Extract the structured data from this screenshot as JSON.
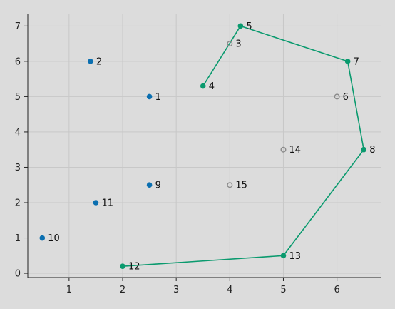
{
  "chart_data": {
    "type": "scatter",
    "title": "",
    "xlabel": "",
    "ylabel": "",
    "xlim": [
      0.23,
      6.83
    ],
    "ylim": [
      -0.12,
      7.33
    ],
    "xticks": [
      1,
      2,
      3,
      4,
      5,
      6
    ],
    "yticks": [
      0,
      1,
      2,
      3,
      4,
      5,
      6,
      7
    ],
    "grid": true,
    "colors": {
      "background": "#dcdcdc",
      "grid": "#c8c8c8",
      "axis": "#222222",
      "blue": "#0b6fb0",
      "green": "#0a9a6e",
      "hollow": "#8a8a8a"
    },
    "points": [
      {
        "id": "1",
        "x": 2.5,
        "y": 5.0,
        "style": "blue"
      },
      {
        "id": "2",
        "x": 1.4,
        "y": 6.0,
        "style": "blue"
      },
      {
        "id": "3",
        "x": 4.0,
        "y": 6.5,
        "style": "hollow"
      },
      {
        "id": "4",
        "x": 3.5,
        "y": 5.3,
        "style": "green"
      },
      {
        "id": "5",
        "x": 4.2,
        "y": 7.0,
        "style": "green"
      },
      {
        "id": "6",
        "x": 6.0,
        "y": 5.0,
        "style": "hollow"
      },
      {
        "id": "7",
        "x": 6.2,
        "y": 6.0,
        "style": "green"
      },
      {
        "id": "8",
        "x": 6.5,
        "y": 3.5,
        "style": "green"
      },
      {
        "id": "9",
        "x": 2.5,
        "y": 2.5,
        "style": "blue"
      },
      {
        "id": "10",
        "x": 0.5,
        "y": 1.0,
        "style": "blue"
      },
      {
        "id": "11",
        "x": 1.5,
        "y": 2.0,
        "style": "blue"
      },
      {
        "id": "12",
        "x": 2.0,
        "y": 0.2,
        "style": "green"
      },
      {
        "id": "13",
        "x": 5.0,
        "y": 0.5,
        "style": "green"
      },
      {
        "id": "14",
        "x": 5.0,
        "y": 3.5,
        "style": "hollow"
      },
      {
        "id": "15",
        "x": 4.0,
        "y": 2.5,
        "style": "hollow"
      }
    ],
    "path": [
      "4",
      "5",
      "7",
      "8",
      "13",
      "12"
    ]
  }
}
